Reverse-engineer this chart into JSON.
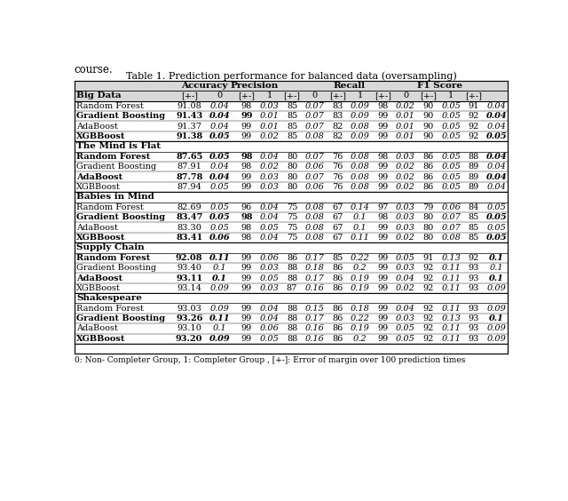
{
  "title": "Table 1. Prediction performance for balanced data (oversampling)",
  "footnote": "0: Non- Completer Group, 1: Completer Group , [+-]: Error of margin over 100 prediction times",
  "sections": [
    {
      "name": "Big Data",
      "rows": [
        {
          "model": "Random Forest",
          "vals": [
            "91.08",
            "0.04",
            "98",
            "0.03",
            "85",
            "0.07",
            "83",
            "0.09",
            "98",
            "0.02",
            "90",
            "0.05",
            "91",
            "0.04"
          ],
          "bold": [
            false,
            false,
            false,
            false,
            false,
            false,
            false,
            false,
            false,
            false,
            false,
            false,
            false,
            false
          ]
        },
        {
          "model": "Gradient Boosting",
          "vals": [
            "91.43",
            "0.04",
            "99",
            "0.01",
            "85",
            "0.07",
            "83",
            "0.09",
            "99",
            "0.01",
            "90",
            "0.05",
            "92",
            "0.04"
          ],
          "bold": [
            true,
            true,
            true,
            false,
            false,
            false,
            false,
            false,
            false,
            false,
            false,
            false,
            false,
            true
          ]
        },
        {
          "model": "AdaBoost",
          "vals": [
            "91.37",
            "0.04",
            "99",
            "0.01",
            "85",
            "0.07",
            "82",
            "0.08",
            "99",
            "0.01",
            "90",
            "0.05",
            "92",
            "0.04"
          ],
          "bold": [
            false,
            false,
            false,
            false,
            false,
            false,
            false,
            false,
            false,
            false,
            false,
            false,
            false,
            false
          ]
        },
        {
          "model": "XGBBoost",
          "vals": [
            "91.38",
            "0.05",
            "99",
            "0.02",
            "85",
            "0.08",
            "82",
            "0.09",
            "99",
            "0.01",
            "90",
            "0.05",
            "92",
            "0.05"
          ],
          "bold": [
            true,
            true,
            false,
            false,
            false,
            false,
            false,
            false,
            false,
            false,
            false,
            false,
            false,
            true
          ]
        }
      ]
    },
    {
      "name": "The Mind is Flat",
      "rows": [
        {
          "model": "Random Forest",
          "vals": [
            "87.65",
            "0.05",
            "98",
            "0.04",
            "80",
            "0.07",
            "76",
            "0.08",
            "98",
            "0.03",
            "86",
            "0.05",
            "88",
            "0.04"
          ],
          "bold": [
            true,
            true,
            true,
            false,
            false,
            false,
            false,
            false,
            false,
            false,
            false,
            false,
            false,
            true
          ]
        },
        {
          "model": "Gradient Boosting",
          "vals": [
            "87.91",
            "0.04",
            "98",
            "0.02",
            "80",
            "0.06",
            "76",
            "0.08",
            "99",
            "0.02",
            "86",
            "0.05",
            "89",
            "0.04"
          ],
          "bold": [
            false,
            false,
            false,
            false,
            false,
            false,
            false,
            false,
            false,
            false,
            false,
            false,
            false,
            false
          ]
        },
        {
          "model": "AdaBoost",
          "vals": [
            "87.78",
            "0.04",
            "99",
            "0.03",
            "80",
            "0.07",
            "76",
            "0.08",
            "99",
            "0.02",
            "86",
            "0.05",
            "89",
            "0.04"
          ],
          "bold": [
            true,
            true,
            false,
            false,
            false,
            false,
            false,
            false,
            false,
            false,
            false,
            false,
            false,
            true
          ]
        },
        {
          "model": "XGBBoost",
          "vals": [
            "87.94",
            "0.05",
            "99",
            "0.03",
            "80",
            "0.06",
            "76",
            "0.08",
            "99",
            "0.02",
            "86",
            "0.05",
            "89",
            "0.04"
          ],
          "bold": [
            false,
            false,
            false,
            false,
            false,
            false,
            false,
            false,
            false,
            false,
            false,
            false,
            false,
            false
          ]
        }
      ]
    },
    {
      "name": "Babies in Mind",
      "rows": [
        {
          "model": "Random Forest",
          "vals": [
            "82.69",
            "0.05",
            "96",
            "0.04",
            "75",
            "0.08",
            "67",
            "0.14",
            "97",
            "0.03",
            "79",
            "0.06",
            "84",
            "0.05"
          ],
          "bold": [
            false,
            false,
            false,
            false,
            false,
            false,
            false,
            false,
            false,
            false,
            false,
            false,
            false,
            false
          ]
        },
        {
          "model": "Gradient Boosting",
          "vals": [
            "83.47",
            "0.05",
            "98",
            "0.04",
            "75",
            "0.08",
            "67",
            "0.1",
            "98",
            "0.03",
            "80",
            "0.07",
            "85",
            "0.05"
          ],
          "bold": [
            true,
            true,
            true,
            false,
            false,
            false,
            false,
            false,
            false,
            false,
            false,
            false,
            false,
            true
          ]
        },
        {
          "model": "AdaBoost",
          "vals": [
            "83.30",
            "0.05",
            "98",
            "0.05",
            "75",
            "0.08",
            "67",
            "0.1",
            "99",
            "0.03",
            "80",
            "0.07",
            "85",
            "0.05"
          ],
          "bold": [
            false,
            false,
            false,
            false,
            false,
            false,
            false,
            false,
            false,
            false,
            false,
            false,
            false,
            false
          ]
        },
        {
          "model": "XGBBoost",
          "vals": [
            "83.41",
            "0.06",
            "98",
            "0.04",
            "75",
            "0.08",
            "67",
            "0.11",
            "99",
            "0.02",
            "80",
            "0.08",
            "85",
            "0.05"
          ],
          "bold": [
            true,
            true,
            false,
            false,
            false,
            false,
            false,
            false,
            false,
            false,
            false,
            false,
            false,
            true
          ]
        }
      ]
    },
    {
      "name": "Supply Chain",
      "rows": [
        {
          "model": "Random Forest",
          "vals": [
            "92.08",
            "0.11",
            "99",
            "0.06",
            "86",
            "0.17",
            "85",
            "0.22",
            "99",
            "0.05",
            "91",
            "0.13",
            "92",
            "0.1"
          ],
          "bold": [
            true,
            true,
            false,
            false,
            false,
            false,
            false,
            false,
            false,
            false,
            false,
            false,
            false,
            true
          ]
        },
        {
          "model": "Gradient Boosting",
          "vals": [
            "93.40",
            "0.1",
            "99",
            "0.03",
            "88",
            "0.18",
            "86",
            "0.2",
            "99",
            "0.03",
            "92",
            "0.11",
            "93",
            "0.1"
          ],
          "bold": [
            false,
            false,
            false,
            false,
            false,
            false,
            false,
            false,
            false,
            false,
            false,
            false,
            false,
            false
          ]
        },
        {
          "model": "AdaBoost",
          "vals": [
            "93.11",
            "0.1",
            "99",
            "0.05",
            "88",
            "0.17",
            "86",
            "0.19",
            "99",
            "0.04",
            "92",
            "0.11",
            "93",
            "0.1"
          ],
          "bold": [
            true,
            true,
            false,
            false,
            false,
            false,
            false,
            false,
            false,
            false,
            false,
            false,
            false,
            true
          ]
        },
        {
          "model": "XGBBoost",
          "vals": [
            "93.14",
            "0.09",
            "99",
            "0.03",
            "87",
            "0.16",
            "86",
            "0.19",
            "99",
            "0.02",
            "92",
            "0.11",
            "93",
            "0.09"
          ],
          "bold": [
            false,
            false,
            false,
            false,
            false,
            false,
            false,
            false,
            false,
            false,
            false,
            false,
            false,
            false
          ]
        }
      ]
    },
    {
      "name": "Shakespeare",
      "rows": [
        {
          "model": "Random Forest",
          "vals": [
            "93.03",
            "0.09",
            "99",
            "0.04",
            "88",
            "0.15",
            "86",
            "0.18",
            "99",
            "0.04",
            "92",
            "0.11",
            "93",
            "0.09"
          ],
          "bold": [
            false,
            false,
            false,
            false,
            false,
            false,
            false,
            false,
            false,
            false,
            false,
            false,
            false,
            false
          ]
        },
        {
          "model": "Gradient Boosting",
          "vals": [
            "93.26",
            "0.11",
            "99",
            "0.04",
            "88",
            "0.17",
            "86",
            "0.22",
            "99",
            "0.03",
            "92",
            "0.13",
            "93",
            "0.1"
          ],
          "bold": [
            true,
            true,
            false,
            false,
            false,
            false,
            false,
            false,
            false,
            false,
            false,
            false,
            false,
            true
          ]
        },
        {
          "model": "AdaBoost",
          "vals": [
            "93.10",
            "0.1",
            "99",
            "0.06",
            "88",
            "0.16",
            "86",
            "0.19",
            "99",
            "0.05",
            "92",
            "0.11",
            "93",
            "0.09"
          ],
          "bold": [
            false,
            false,
            false,
            false,
            false,
            false,
            false,
            false,
            false,
            false,
            false,
            false,
            false,
            false
          ]
        },
        {
          "model": "XGBBoost",
          "vals": [
            "93.20",
            "0.09",
            "99",
            "0.05",
            "88",
            "0.16",
            "86",
            "0.2",
            "99",
            "0.05",
            "92",
            "0.11",
            "93",
            "0.09"
          ],
          "bold": [
            true,
            true,
            false,
            false,
            false,
            false,
            false,
            false,
            false,
            false,
            false,
            false,
            false,
            false
          ]
        }
      ]
    }
  ],
  "italic_val_indices": [
    1,
    3,
    5,
    7,
    9,
    11,
    13
  ],
  "col_widths_rel": [
    1.62,
    0.5,
    0.5,
    0.37,
    0.37,
    0.37,
    0.37,
    0.37,
    0.37,
    0.37,
    0.37,
    0.37,
    0.37,
    0.37,
    0.37
  ],
  "header_bg_color": "#d8d8d8",
  "row_bg_odd": "#ffffff",
  "row_bg_even": "#ffffff",
  "font_size_title": 8.0,
  "font_size_header": 7.5,
  "font_size_data": 7.0,
  "font_size_footnote": 6.5,
  "course_text": "course."
}
